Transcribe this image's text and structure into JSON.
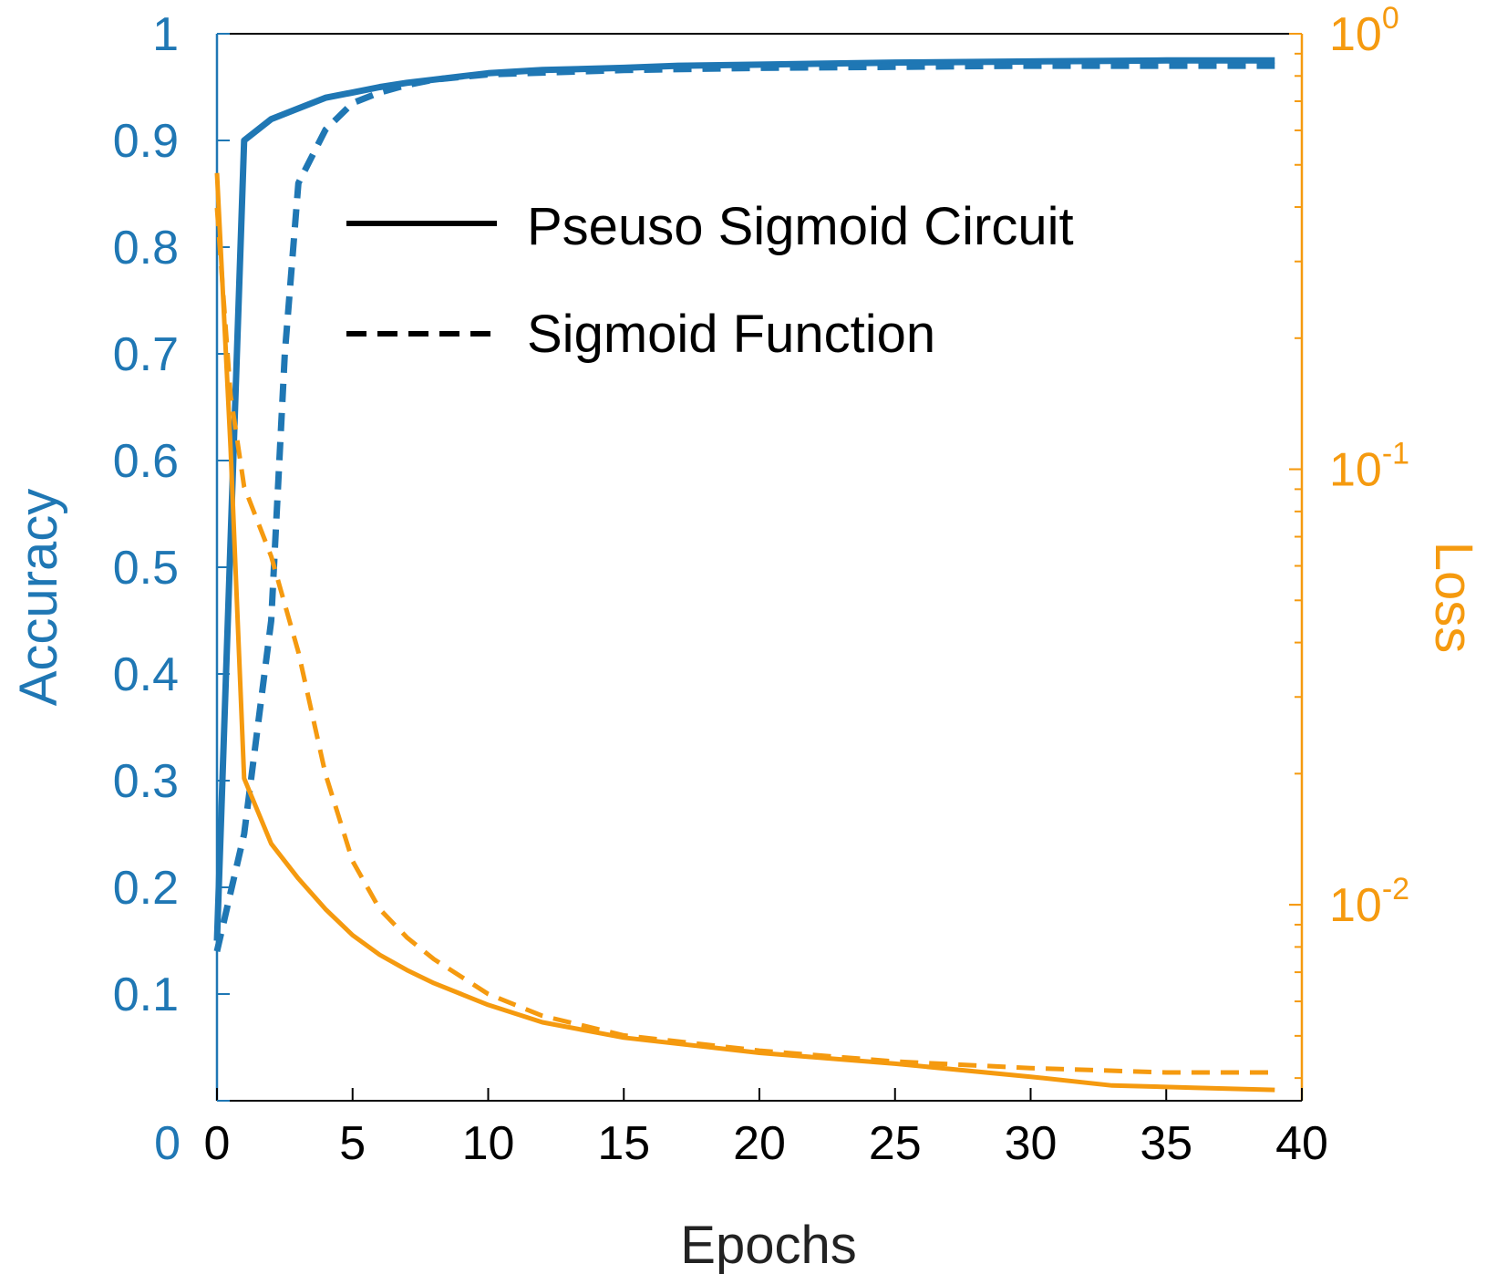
{
  "chart_data": {
    "type": "line",
    "xlabel": "Epochs",
    "ylabel_left": "Accuracy",
    "ylabel_right": "Loss",
    "xlim": [
      0,
      40
    ],
    "ylim_left": [
      0,
      1
    ],
    "ylim_right_log10": [
      -2.45,
      0
    ],
    "x_ticks": [
      0,
      5,
      10,
      15,
      20,
      25,
      30,
      35,
      40
    ],
    "y_left_ticks": [
      0,
      0.1,
      0.2,
      0.3,
      0.4,
      0.5,
      0.6,
      0.7,
      0.8,
      0.9,
      1
    ],
    "y_left_tick_labels": [
      "0",
      "0.1",
      "0.2",
      "0.3",
      "0.4",
      "0.5",
      "0.6",
      "0.7",
      "0.8",
      "0.9",
      "1"
    ],
    "y_right_major_ticks": [
      {
        "exp": 0,
        "base": "10",
        "sup": "0"
      },
      {
        "exp": -1,
        "base": "10",
        "sup": "-1"
      },
      {
        "exp": -2,
        "base": "10",
        "sup": "-2"
      }
    ],
    "colors": {
      "accuracy": "#1f77b4",
      "loss": "#f59a0f",
      "legend": "#000000",
      "x_axis": "#000000"
    },
    "legend": [
      {
        "label": "Pseuso Sigmoid Circuit",
        "style": "solid"
      },
      {
        "label": "Sigmoid Function",
        "style": "dashed"
      }
    ],
    "series": [
      {
        "name": "Accuracy - Pseuso Sigmoid Circuit",
        "axis": "left",
        "style": "solid",
        "color_key": "accuracy",
        "x": [
          0,
          1,
          2,
          3,
          4,
          5,
          6,
          7,
          8,
          10,
          12,
          15,
          17,
          20,
          25,
          30,
          35,
          39
        ],
        "y": [
          0.15,
          0.9,
          0.92,
          0.93,
          0.94,
          0.945,
          0.95,
          0.954,
          0.957,
          0.963,
          0.966,
          0.968,
          0.97,
          0.971,
          0.973,
          0.974,
          0.975,
          0.975
        ]
      },
      {
        "name": "Accuracy - Sigmoid Function",
        "axis": "left",
        "style": "dashed",
        "color_key": "accuracy",
        "x": [
          0,
          1,
          2,
          2.5,
          3,
          4,
          5,
          6,
          7,
          8,
          10,
          15,
          20,
          25,
          30,
          35,
          39
        ],
        "y": [
          0.14,
          0.25,
          0.45,
          0.7,
          0.86,
          0.91,
          0.935,
          0.945,
          0.952,
          0.957,
          0.962,
          0.966,
          0.968,
          0.969,
          0.97,
          0.97,
          0.97
        ]
      },
      {
        "name": "Loss - Pseuso Sigmoid Circuit",
        "axis": "right",
        "style": "solid",
        "color_key": "loss",
        "x": [
          0,
          0.5,
          1,
          2,
          3,
          4,
          5,
          6,
          7,
          8,
          9,
          10,
          12,
          15,
          20,
          25,
          30,
          33,
          36,
          39
        ],
        "y_log10": [
          -0.32,
          -0.95,
          -1.71,
          -1.86,
          -1.94,
          -2.01,
          -2.07,
          -2.115,
          -2.15,
          -2.18,
          -2.205,
          -2.23,
          -2.27,
          -2.305,
          -2.34,
          -2.365,
          -2.395,
          -2.415,
          -2.42,
          -2.425
        ]
      },
      {
        "name": "Loss - Sigmoid Function",
        "axis": "right",
        "style": "dashed",
        "color_key": "loss",
        "x": [
          0,
          0.5,
          1,
          2,
          3,
          4,
          5,
          6,
          7,
          8,
          10,
          12,
          15,
          20,
          25,
          30,
          35,
          39
        ],
        "y_log10": [
          -0.4,
          -0.83,
          -1.04,
          -1.2,
          -1.42,
          -1.7,
          -1.9,
          -2.01,
          -2.075,
          -2.125,
          -2.205,
          -2.255,
          -2.3,
          -2.335,
          -2.36,
          -2.375,
          -2.385,
          -2.385
        ]
      }
    ]
  }
}
